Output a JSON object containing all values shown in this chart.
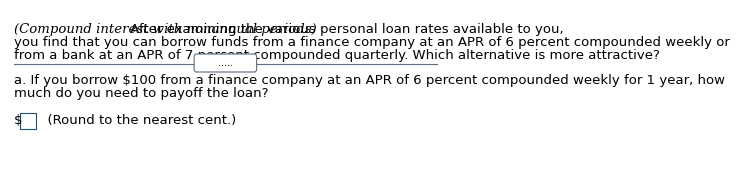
{
  "bg_color": "#ffffff",
  "border_color": "#1a5276",
  "text_color": "#000000",
  "italic_part": "(Compound interest with nonannual periods)",
  "line1": " After examining the various personal loan rates available to you,",
  "line2": "you find that you can borrow funds from a finance company at an APR of 6 percent compounded weekly or",
  "line3": "from a bank at an APR of 7 percent compounded quarterly. Which alternative is more attractive?",
  "divider_dots": ".....",
  "question_line1": "a. If you borrow $100 from a finance company at an APR of 6 percent compounded weekly for 1 year, how",
  "question_line2": "much do you need to payoff the loan?",
  "answer_label": "$",
  "answer_hint": "  (Round to the nearest cent.)",
  "font_size": 9.5,
  "box_color": "#d6eaf8",
  "divider_line_color": "#5d6d7e"
}
